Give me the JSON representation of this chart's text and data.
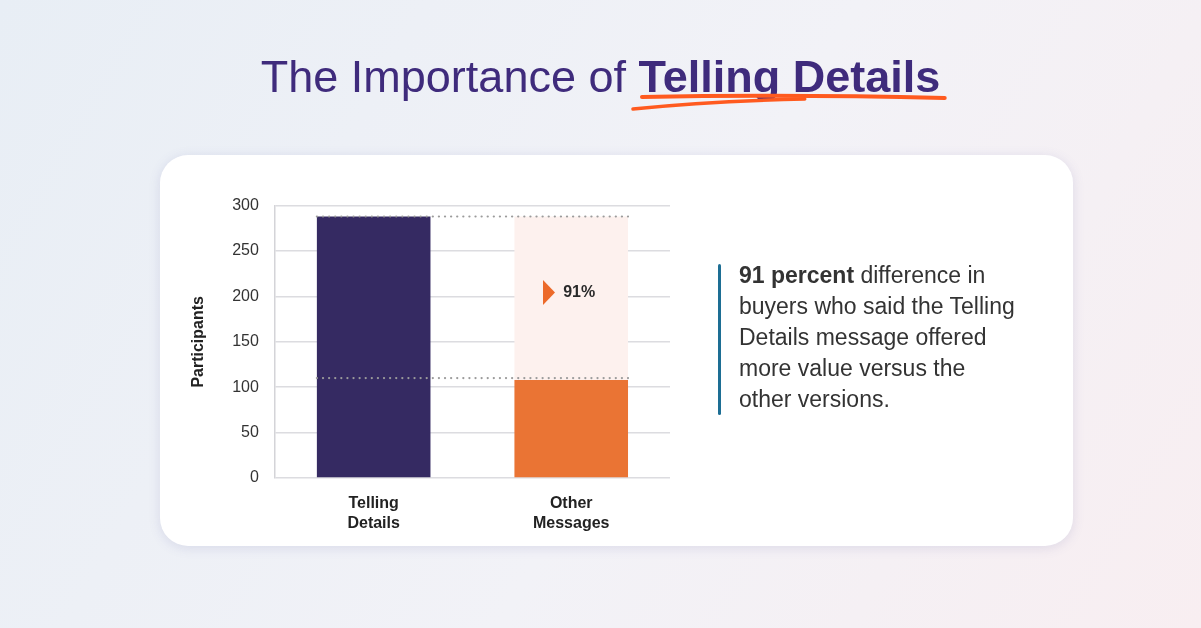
{
  "chart_data": {
    "type": "bar",
    "title": "The Importance of Telling Details",
    "ylabel": "Participants",
    "categories": [
      "Telling Details",
      "Other Messages"
    ],
    "stacked": true,
    "series": [
      {
        "colors": [
          "#352a62",
          "#ea7434"
        ],
        "values": [
          288,
          108
        ]
      },
      {
        "color": "#fdf1ee",
        "values": [
          null,
          180
        ]
      }
    ],
    "ylim": [
      0,
      300
    ],
    "yticks": [
      0,
      50,
      100,
      150,
      200,
      250,
      300
    ],
    "grid": "y",
    "ref_lines": [
      {
        "axis": "y",
        "value": 288,
        "color": "#9b9b9b",
        "line_style": "dotted"
      },
      {
        "axis": "y",
        "value": 110,
        "color": "#9b9b9b",
        "line_style": "dotted"
      }
    ],
    "annotations": [
      "91%",
      "91 percent difference in buyers who said the Telling Details message offered more value versus the other versions."
    ]
  }
}
